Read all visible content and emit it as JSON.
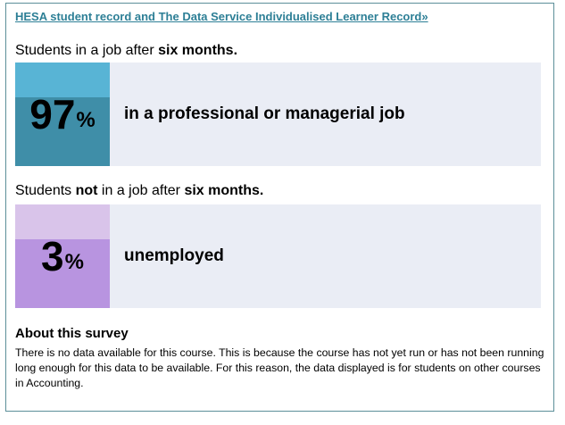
{
  "source_link": "HESA student record and The Data Service Individualised Learner Record»",
  "employed": {
    "heading_prefix": "Students in a job after ",
    "heading_bold": "six months.",
    "value": "97",
    "unit": "%",
    "label": "in a professional or managerial job",
    "top_color": "#58b4d5",
    "bottom_color": "#3f8ea8"
  },
  "not_employed": {
    "heading_prefix": "Students ",
    "heading_bold_1": "not",
    "heading_middle": " in a job after ",
    "heading_bold_2": "six months.",
    "value": "3",
    "unit": "%",
    "label": "unemployed",
    "top_color": "#d9c4ea",
    "bottom_color": "#b894e0"
  },
  "about": {
    "title": "About this survey",
    "text": "There is no data available for this course. This is because the course has not yet run or has not been running long enough for this data to be available. For this reason, the data displayed is for students on other courses in Accounting."
  }
}
